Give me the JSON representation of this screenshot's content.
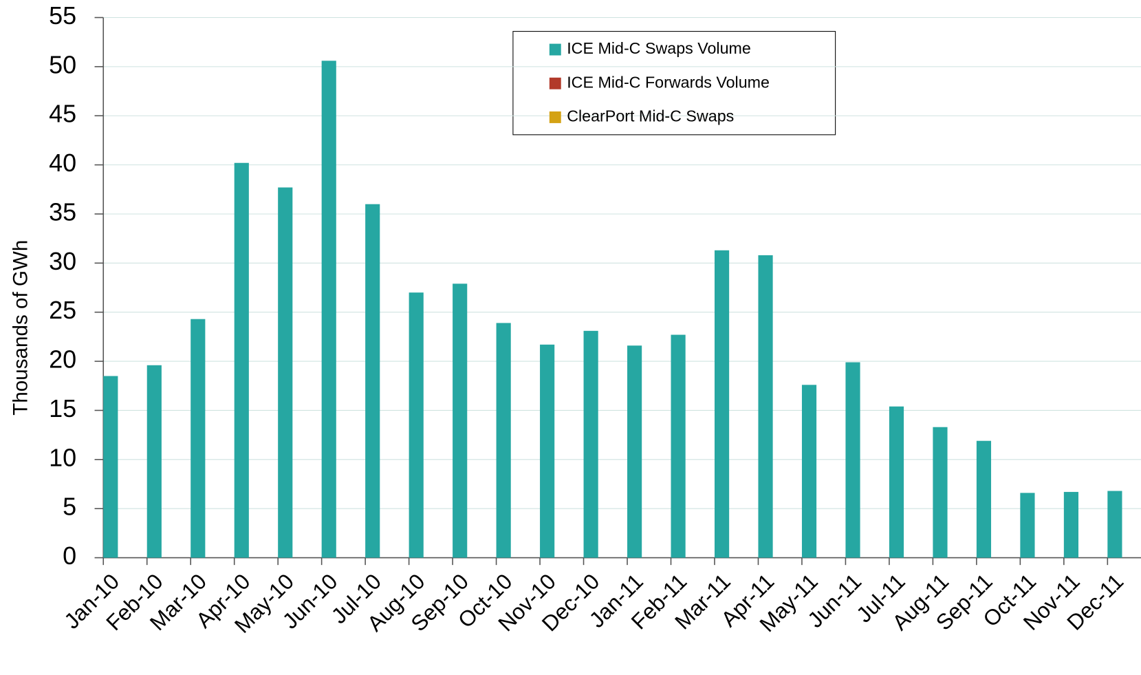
{
  "chart_data": {
    "type": "bar",
    "y_label": "Thousands of GWh",
    "categories": [
      "Jan-10",
      "Feb-10",
      "Mar-10",
      "Apr-10",
      "May-10",
      "Jun-10",
      "Jul-10",
      "Aug-10",
      "Sep-10",
      "Oct-10",
      "Nov-10",
      "Dec-10",
      "Jan-11",
      "Feb-11",
      "Mar-11",
      "Apr-11",
      "May-11",
      "Jun-11",
      "Jul-11",
      "Aug-11",
      "Sep-11",
      "Oct-11",
      "Nov-11",
      "Dec-11"
    ],
    "series": [
      {
        "name": "ICE Mid-C Swaps Volume",
        "color": "#26a7a2",
        "values": [
          18.5,
          19.6,
          24.3,
          40.2,
          37.7,
          50.6,
          36.0,
          27.0,
          27.9,
          23.9,
          21.7,
          23.1,
          21.6,
          22.7,
          31.3,
          30.8,
          17.6,
          19.9,
          15.4,
          13.3,
          11.9,
          6.6,
          6.7,
          6.8
        ]
      },
      {
        "name": "ICE Mid-C Forwards Volume",
        "color": "#b23a2a",
        "values": [
          null,
          null,
          null,
          null,
          null,
          null,
          null,
          null,
          null,
          null,
          null,
          null,
          null,
          null,
          null,
          null,
          null,
          null,
          null,
          null,
          null,
          null,
          null,
          null
        ]
      },
      {
        "name": "ClearPort Mid-C Swaps",
        "color": "#d4a214",
        "values": [
          null,
          null,
          null,
          null,
          null,
          null,
          null,
          null,
          null,
          null,
          null,
          null,
          null,
          null,
          null,
          null,
          null,
          null,
          null,
          null,
          null,
          null,
          null,
          null
        ]
      }
    ],
    "ylim": [
      0,
      55
    ],
    "yticks": [
      0,
      5,
      10,
      15,
      20,
      25,
      30,
      35,
      40,
      45,
      50,
      55
    ],
    "grid": true
  }
}
